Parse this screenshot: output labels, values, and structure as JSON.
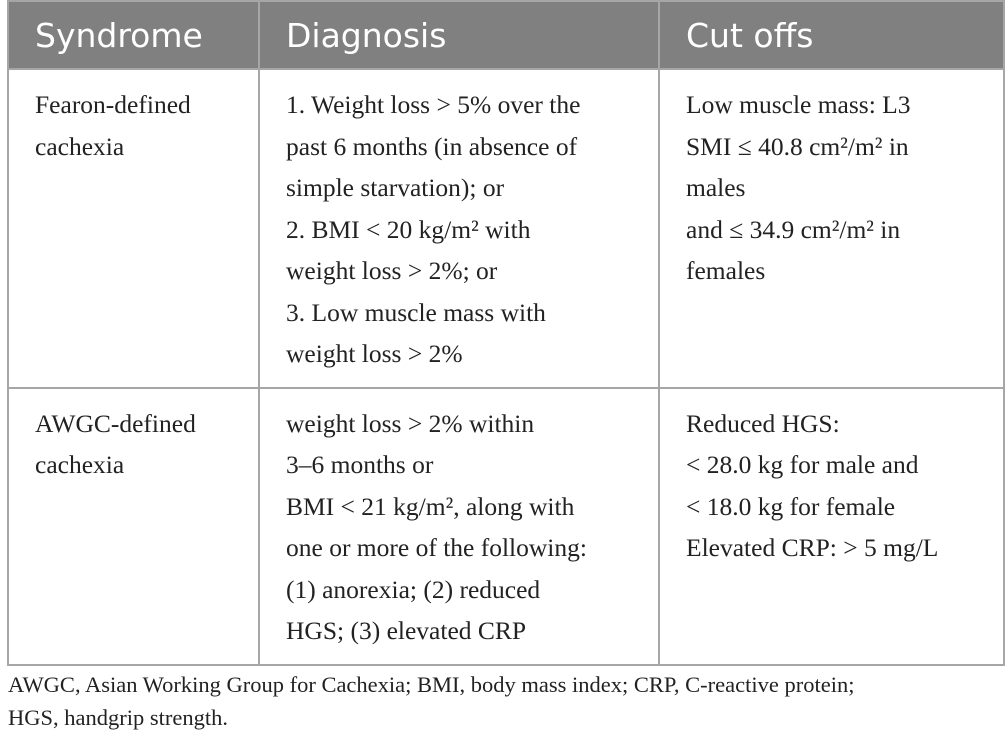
{
  "header": {
    "columns": [
      "Syndrome",
      "Diagnosis",
      "Cut offs"
    ]
  },
  "table": {
    "rows": [
      [
        [
          "Fearon-defined",
          "cachexia"
        ],
        [
          "1. Weight loss > 5% over the",
          "past 6 months (in absence of",
          "simple starvation); or",
          "2. BMI < 20 kg/m² with",
          "weight loss > 2%; or",
          "3. Low muscle mass with",
          "weight loss > 2%"
        ],
        [
          "Low muscle mass: L3",
          "SMI ≤ 40.8 cm²/m² in",
          "males",
          "and ≤ 34.9 cm²/m² in",
          "females"
        ]
      ],
      [
        [
          "AWGC-defined",
          "cachexia"
        ],
        [
          "weight loss > 2% within",
          "3–6 months or",
          "BMI < 21 kg/m², along with",
          "one or more of the following:",
          "(1) anorexia; (2) reduced",
          "HGS; (3) elevated CRP"
        ],
        [
          "Reduced HGS:",
          "< 28.0 kg for male and",
          "< 18.0 kg for female",
          "Elevated CRP: > 5 mg/L"
        ]
      ]
    ]
  },
  "footnote": [
    "AWGC, Asian Working Group for Cachexia; BMI, body mass index; CRP, C-reactive protein;",
    "HGS, handgrip strength."
  ]
}
